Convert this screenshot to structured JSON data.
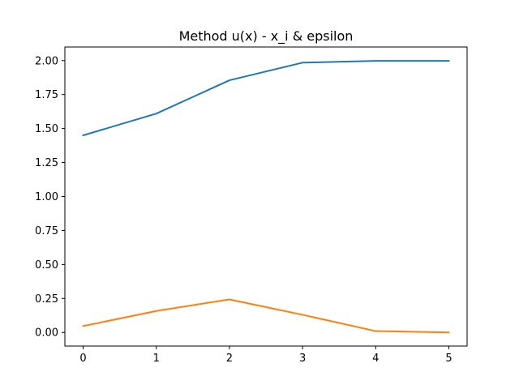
{
  "chart_data": {
    "type": "line",
    "title": "Method u(x) - x_i & epsilon",
    "xlabel": "",
    "ylabel": "",
    "x": [
      0,
      1,
      2,
      3,
      4,
      5
    ],
    "xlim": [
      -0.25,
      5.25
    ],
    "ylim": [
      -0.1,
      2.1
    ],
    "xticks": [
      0,
      1,
      2,
      3,
      4,
      5
    ],
    "xtick_labels": [
      "0",
      "1",
      "2",
      "3",
      "4",
      "5"
    ],
    "yticks": [
      0.0,
      0.25,
      0.5,
      0.75,
      1.0,
      1.25,
      1.5,
      1.75,
      2.0
    ],
    "ytick_labels": [
      "0.00",
      "0.25",
      "0.50",
      "0.75",
      "1.00",
      "1.25",
      "1.50",
      "1.75",
      "2.00"
    ],
    "grid": false,
    "series": [
      {
        "values": [
          1.45,
          1.61,
          1.855,
          1.985,
          1.998,
          1.998
        ],
        "color": "#1f77b4"
      },
      {
        "values": [
          0.047,
          0.158,
          0.243,
          0.13,
          0.01,
          0.0
        ],
        "color": "#ff7f0e"
      }
    ]
  }
}
